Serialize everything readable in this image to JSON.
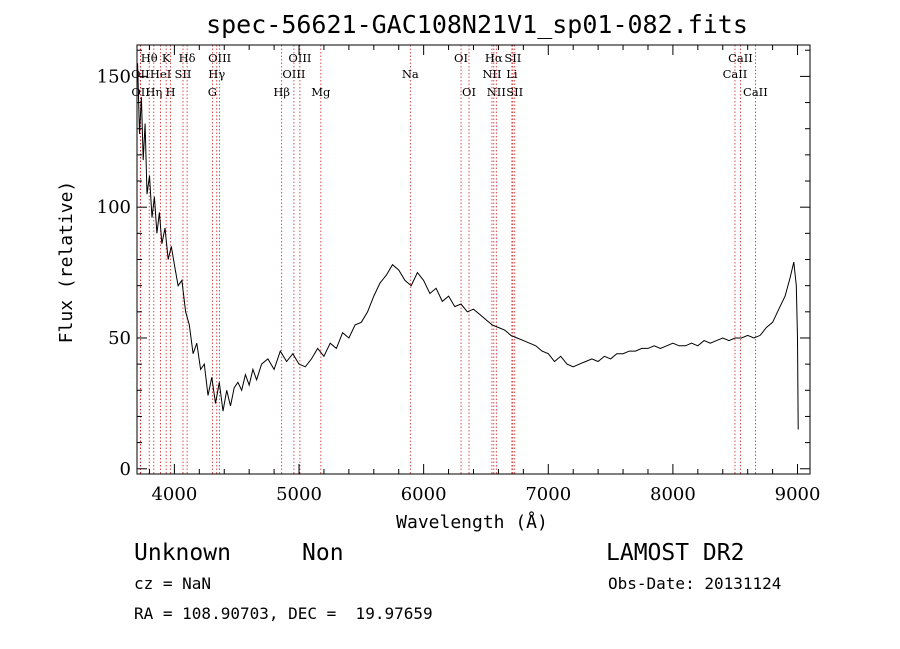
{
  "chart_data": {
    "type": "line",
    "title": "spec-56621-GAC108N21V1_sp01-082.fits",
    "xlabel": "Wavelength (Å)",
    "ylabel": "Flux (relative)",
    "xlim": [
      3700,
      9100
    ],
    "ylim": [
      -2,
      162
    ],
    "xticks": [
      4000,
      5000,
      6000,
      7000,
      8000,
      9000
    ],
    "xtick_labels": [
      "4000",
      "5000",
      "6000",
      "7000",
      "8000",
      "9000"
    ],
    "yticks": [
      0,
      50,
      100,
      150
    ],
    "ytick_labels": [
      "0",
      "50",
      "100",
      "150"
    ],
    "grid": false,
    "series": [
      {
        "x": [
          3705,
          3720,
          3735,
          3750,
          3765,
          3780,
          3800,
          3820,
          3840,
          3860,
          3880,
          3900,
          3925,
          3950,
          3975,
          4000,
          4030,
          4060,
          4090,
          4120,
          4150,
          4180,
          4210,
          4240,
          4270,
          4300,
          4330,
          4360,
          4390,
          4420,
          4450,
          4480,
          4510,
          4540,
          4570,
          4600,
          4630,
          4660,
          4700,
          4750,
          4800,
          4850,
          4900,
          4950,
          5000,
          5050,
          5100,
          5150,
          5200,
          5250,
          5300,
          5350,
          5400,
          5450,
          5500,
          5550,
          5600,
          5650,
          5700,
          5750,
          5800,
          5850,
          5900,
          5950,
          6000,
          6050,
          6100,
          6150,
          6200,
          6250,
          6300,
          6350,
          6400,
          6450,
          6500,
          6550,
          6600,
          6650,
          6700,
          6750,
          6800,
          6850,
          6900,
          6950,
          7000,
          7050,
          7100,
          7150,
          7200,
          7250,
          7300,
          7350,
          7400,
          7450,
          7500,
          7550,
          7600,
          7650,
          7700,
          7750,
          7800,
          7850,
          7900,
          7950,
          8000,
          8050,
          8100,
          8150,
          8200,
          8250,
          8300,
          8350,
          8400,
          8450,
          8500,
          8550,
          8600,
          8650,
          8700,
          8750,
          8800,
          8850,
          8900,
          8940,
          8970,
          8990,
          9000,
          9005
        ],
        "values": [
          155,
          128,
          142,
          118,
          132,
          105,
          112,
          96,
          104,
          90,
          98,
          86,
          92,
          80,
          85,
          78,
          70,
          72,
          60,
          55,
          44,
          48,
          38,
          40,
          28,
          35,
          25,
          33,
          22,
          30,
          24,
          31,
          33,
          30,
          36,
          32,
          38,
          34,
          40,
          42,
          38,
          45,
          41,
          44,
          40,
          39,
          42,
          46,
          43,
          48,
          46,
          52,
          50,
          55,
          56,
          60,
          66,
          71,
          74,
          78,
          76,
          72,
          70,
          75,
          72,
          67,
          69,
          64,
          66,
          62,
          63,
          60,
          61,
          59,
          57,
          55,
          54,
          53,
          51,
          50,
          49,
          48,
          47,
          45,
          44,
          41,
          43,
          40,
          39,
          40,
          41,
          42,
          41,
          43,
          42,
          44,
          44,
          45,
          45,
          46,
          46,
          47,
          46,
          47,
          48,
          47,
          47,
          48,
          47,
          49,
          48,
          49,
          50,
          49,
          50,
          50,
          51,
          50,
          51,
          54,
          56,
          61,
          66,
          73,
          79,
          70,
          50,
          15
        ]
      }
    ],
    "annotations": [
      {
        "label": "Hθ",
        "x": 3798,
        "row": 1
      },
      {
        "label": "OII",
        "x": 3727,
        "row": 2
      },
      {
        "label": "OII",
        "x": 3729,
        "row": 3
      },
      {
        "label": "K",
        "x": 3934,
        "row": 1
      },
      {
        "label": "HeI",
        "x": 3889,
        "row": 2
      },
      {
        "label": "Hη",
        "x": 3835,
        "row": 3
      },
      {
        "label": "Hδ",
        "x": 4102,
        "row": 1
      },
      {
        "label": "SII",
        "x": 4069,
        "row": 2
      },
      {
        "label": "H",
        "x": 3969,
        "row": 3
      },
      {
        "label": "OIII",
        "x": 4363,
        "row": 1
      },
      {
        "label": "Hγ",
        "x": 4340,
        "row": 2
      },
      {
        "label": "G",
        "x": 4305,
        "row": 3
      },
      {
        "label": "OIII",
        "x": 5007,
        "row": 1
      },
      {
        "label": "OIII",
        "x": 4959,
        "row": 2
      },
      {
        "label": "Hβ",
        "x": 4861,
        "row": 3
      },
      {
        "label": "Mg",
        "x": 5175,
        "row": 3
      },
      {
        "label": "Na",
        "x": 5893,
        "row": 2
      },
      {
        "label": "OI",
        "x": 6300,
        "row": 1
      },
      {
        "label": "OI",
        "x": 6364,
        "row": 3
      },
      {
        "label": "Hα",
        "x": 6563,
        "row": 1
      },
      {
        "label": "NII",
        "x": 6548,
        "row": 2
      },
      {
        "label": "NII",
        "x": 6583,
        "row": 3
      },
      {
        "label": "SII",
        "x": 6716,
        "row": 1
      },
      {
        "label": "Li",
        "x": 6708,
        "row": 2
      },
      {
        "label": "SII",
        "x": 6731,
        "row": 3
      },
      {
        "label": "CaII",
        "x": 8542,
        "row": 1
      },
      {
        "label": "CaII",
        "x": 8498,
        "row": 2
      },
      {
        "label": "CaII",
        "x": 8662,
        "row": 3
      }
    ],
    "line_positions": [
      3727,
      3729,
      3798,
      3835,
      3889,
      3934,
      3969,
      4069,
      4102,
      4305,
      4340,
      4363,
      4861,
      4959,
      5007,
      5175,
      5893,
      6300,
      6364,
      6548,
      6563,
      6583,
      6708,
      6716,
      6731,
      8498,
      8542,
      8662
    ]
  },
  "footer": {
    "class_label": "Unknown",
    "subclass_label": "Non",
    "survey_label": "LAMOST DR2",
    "cz_label": "cz = NaN",
    "obs_date_label": "Obs-Date: 20131124",
    "coords_label": "RA = 108.90703, DEC =  19.97659"
  },
  "colors": {
    "spectrum": "#000000",
    "line_markers": "#cc2222",
    "axes": "#000000"
  }
}
